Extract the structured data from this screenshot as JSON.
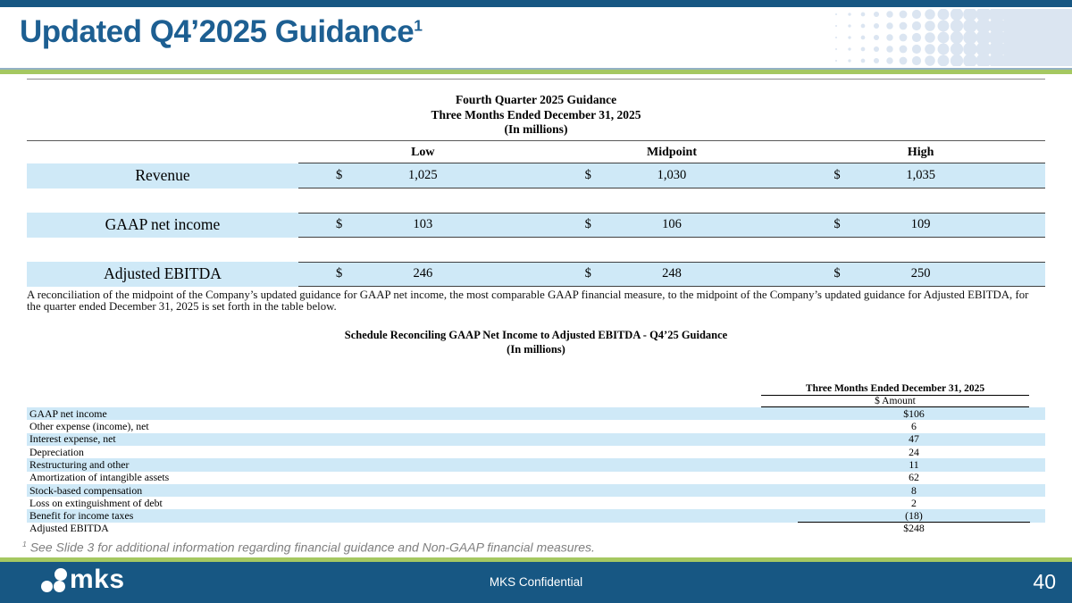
{
  "slide": {
    "title": "Updated Q4’2025 Guidance",
    "title_superscript": "1",
    "footnote_marker": "1",
    "footnote_text": " See Slide 3 for additional information regarding financial guidance and Non-GAAP financial measures."
  },
  "colors": {
    "accent_blue": "#175783",
    "title_blue": "#1d5f92",
    "green_rule": "#a5c861",
    "row_stripe_blue": "#cfe9f7",
    "halftone_blue": "#dbe5f1"
  },
  "guidance_table": {
    "title_lines": [
      "Fourth Quarter 2025 Guidance",
      "Three Months Ended December 31, 2025",
      "(In millions)"
    ],
    "columns": [
      "Low",
      "Midpoint",
      "High"
    ],
    "currency_symbol": "$",
    "rows": [
      {
        "label": "Revenue",
        "low": "1,025",
        "midpoint": "1,030",
        "high": "1,035"
      },
      {
        "label": "GAAP net income",
        "low": "103",
        "midpoint": "106",
        "high": "109"
      },
      {
        "label": "Adjusted EBITDA",
        "low": "246",
        "midpoint": "248",
        "high": "250"
      }
    ]
  },
  "reconciliation_note": "A reconciliation of the midpoint of the Company’s updated guidance for GAAP net income, the most comparable GAAP financial measure, to the midpoint of the Company’s updated guidance for Adjusted EBITDA, for the quarter ended December 31, 2025 is set forth in the table below.",
  "reconciliation_table": {
    "title_lines": [
      "Schedule Reconciling GAAP Net Income to Adjusted EBITDA - Q4’25 Guidance",
      "(In millions)"
    ],
    "column_header": "Three Months Ended December 31, 2025",
    "subheader": "$ Amount",
    "rows": [
      {
        "label": "GAAP net income",
        "value": "$106"
      },
      {
        "label": "Other expense (income), net",
        "value": "6"
      },
      {
        "label": "Interest expense, net",
        "value": "47"
      },
      {
        "label": "Depreciation",
        "value": "24"
      },
      {
        "label": "Restructuring and other",
        "value": "11"
      },
      {
        "label": "Amortization of intangible assets",
        "value": "62"
      },
      {
        "label": "Stock-based compensation",
        "value": "8"
      },
      {
        "label": "Loss on extinguishment of debt",
        "value": "2"
      },
      {
        "label": "Benefit for income taxes",
        "value": "(18)",
        "rule_below": true
      },
      {
        "label": "Adjusted EBITDA",
        "value": "$248"
      }
    ]
  },
  "footer": {
    "logo_text": "mks",
    "confidential_label": "MKS Confidential",
    "page_number": "40"
  }
}
